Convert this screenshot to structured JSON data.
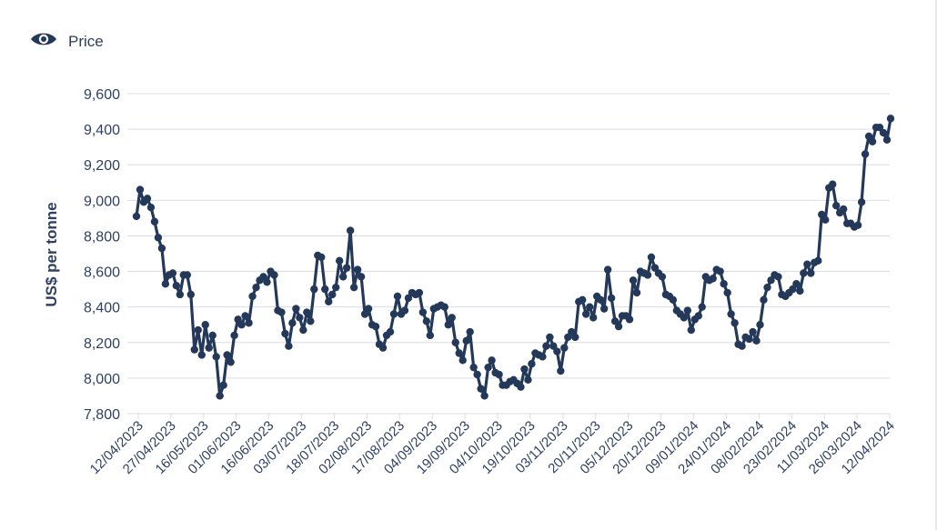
{
  "legend": {
    "label": "Price",
    "icon": "eye-icon"
  },
  "colors": {
    "series": "#24395a",
    "grid": "#d9dde4",
    "text": "#2f4163"
  },
  "chart_data": {
    "type": "line",
    "title": "",
    "xlabel": "",
    "ylabel": "US$ per tonne",
    "ylim": [
      7800,
      9600
    ],
    "yticks": [
      7800,
      8000,
      8200,
      8400,
      8600,
      8800,
      9000,
      9200,
      9400,
      9600
    ],
    "ytick_labels": [
      "7,800",
      "8,000",
      "8,200",
      "8,400",
      "8,600",
      "8,800",
      "9,000",
      "9,200",
      "9,400",
      "9,600"
    ],
    "xtick_labels": [
      "12/04/2023",
      "27/04/2023",
      "16/05/2023",
      "01/06/2023",
      "16/06/2023",
      "03/07/2023",
      "18/07/2023",
      "02/08/2023",
      "17/08/2023",
      "04/09/2023",
      "19/09/2023",
      "04/10/2023",
      "19/10/2023",
      "03/11/2023",
      "20/11/2023",
      "05/12/2023",
      "20/12/2023",
      "09/01/2024",
      "24/01/2024",
      "08/02/2024",
      "23/02/2024",
      "11/03/2024",
      "26/03/2024",
      "12/04/2024"
    ],
    "grid": true,
    "legend_position": "top-left",
    "series": [
      {
        "name": "Price",
        "values": [
          8910,
          9060,
          8990,
          9010,
          8960,
          8880,
          8790,
          8730,
          8530,
          8580,
          8590,
          8520,
          8470,
          8580,
          8580,
          8470,
          8160,
          8270,
          8130,
          8300,
          8170,
          8240,
          8120,
          7900,
          7960,
          8130,
          8090,
          8240,
          8330,
          8300,
          8350,
          8310,
          8460,
          8510,
          8550,
          8570,
          8540,
          8600,
          8580,
          8380,
          8370,
          8250,
          8180,
          8310,
          8390,
          8340,
          8270,
          8370,
          8320,
          8500,
          8690,
          8680,
          8500,
          8430,
          8470,
          8510,
          8660,
          8570,
          8620,
          8830,
          8510,
          8610,
          8570,
          8360,
          8390,
          8300,
          8290,
          8190,
          8170,
          8240,
          8260,
          8360,
          8460,
          8360,
          8380,
          8450,
          8480,
          8470,
          8480,
          8370,
          8320,
          8240,
          8390,
          8400,
          8410,
          8400,
          8300,
          8340,
          8200,
          8140,
          8100,
          8210,
          8260,
          8060,
          8020,
          7940,
          7900,
          8060,
          8100,
          8030,
          8020,
          7960,
          7960,
          7980,
          7990,
          7970,
          7950,
          8050,
          7990,
          8080,
          8140,
          8130,
          8120,
          8180,
          8230,
          8180,
          8150,
          8040,
          8170,
          8230,
          8260,
          8230,
          8430,
          8440,
          8360,
          8400,
          8340,
          8460,
          8440,
          8390,
          8610,
          8450,
          8320,
          8290,
          8350,
          8350,
          8330,
          8550,
          8480,
          8600,
          8590,
          8580,
          8680,
          8620,
          8590,
          8570,
          8470,
          8460,
          8440,
          8380,
          8360,
          8340,
          8380,
          8270,
          8330,
          8350,
          8400,
          8570,
          8550,
          8560,
          8610,
          8600,
          8530,
          8480,
          8360,
          8310,
          8190,
          8180,
          8230,
          8220,
          8260,
          8210,
          8300,
          8440,
          8510,
          8550,
          8580,
          8570,
          8470,
          8460,
          8480,
          8500,
          8530,
          8490,
          8590,
          8640,
          8590,
          8650,
          8660,
          8920,
          8890,
          9070,
          9090,
          8970,
          8930,
          8950,
          8870,
          8870,
          8850,
          8860,
          8990,
          9260,
          9360,
          9330,
          9410,
          9410,
          9380,
          9340,
          9460
        ]
      }
    ]
  }
}
